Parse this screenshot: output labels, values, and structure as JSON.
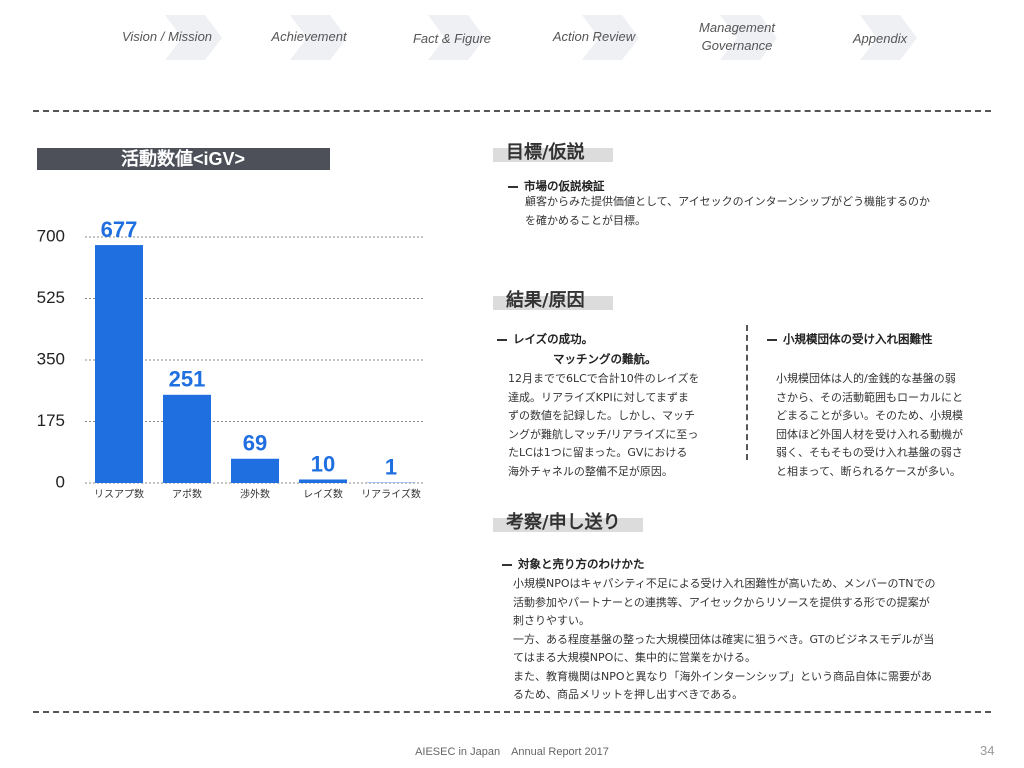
{
  "nav": {
    "items": [
      "Vision / Mission",
      "Achievement",
      "Fact & Figure",
      "Action Review",
      "Management Governance",
      "Appendix"
    ]
  },
  "chart_data": {
    "type": "bar",
    "title": "活動数値<iGV>",
    "categories": [
      "リスアプ数",
      "アポ数",
      "渉外数",
      "レイズ数",
      "リアライズ数"
    ],
    "values": [
      677,
      251,
      69,
      10,
      1
    ],
    "color": "#1f6fe0",
    "ylim": [
      0,
      700
    ],
    "yticks": [
      0,
      175,
      350,
      525,
      700
    ],
    "grid": true
  },
  "goal": {
    "heading": "目標/仮説",
    "subheading": "市場の仮説検証",
    "lines": [
      "顧客からみた提供価値として、アイセックのインターンシップがどう機能するのか",
      "を確かめることが目標。"
    ]
  },
  "result": {
    "heading": "結果/原因",
    "left": {
      "subheading": [
        "レイズの成功。",
        "マッチングの難航。"
      ],
      "lines": [
        "12月までで6LCで合計10件のレイズを",
        "達成。リアライズKPIに対してまずま",
        "ずの数値を記録した。しかし、マッチ",
        "ングが難航しマッチ/リアライズに至っ",
        "たLCは1つに留まった。GVにおける",
        "海外チャネルの整備不足が原因。"
      ]
    },
    "right": {
      "subheading": "小規模団体の受け入れ困難性",
      "lines": [
        "小規模団体は人的/金銭的な基盤の弱",
        "さから、その活動範囲もローカルにと",
        "どまることが多い。そのため、小規模",
        "団体ほど外国人材を受け入れる動機が",
        "弱く、そもそもの受け入れ基盤の弱さ",
        "と相まって、断られるケースが多い。"
      ]
    }
  },
  "consideration": {
    "heading": "考察/申し送り",
    "subheading": "対象と売り方のわけかた",
    "lines": [
      "小規模NPOはキャパシティ不足による受け入れ困難性が高いため、メンバーのTNでの",
      "活動参加やパートナーとの連携等、アイセックからリソースを提供する形での提案が",
      "刺さりやすい。",
      "一方、ある程度基盤の整った大規模団体は確実に狙うべき。GTのビジネスモデルが当",
      "てはまる大規模NPOに、集中的に営業をかける。",
      "また、教育機関はNPOと異なり「海外インターンシップ」という商品自体に需要があ",
      "るため、商品メリットを押し出すべきである。"
    ]
  },
  "footer": {
    "text": "AIESEC in Japan　Annual Report 2017",
    "page": "34"
  }
}
